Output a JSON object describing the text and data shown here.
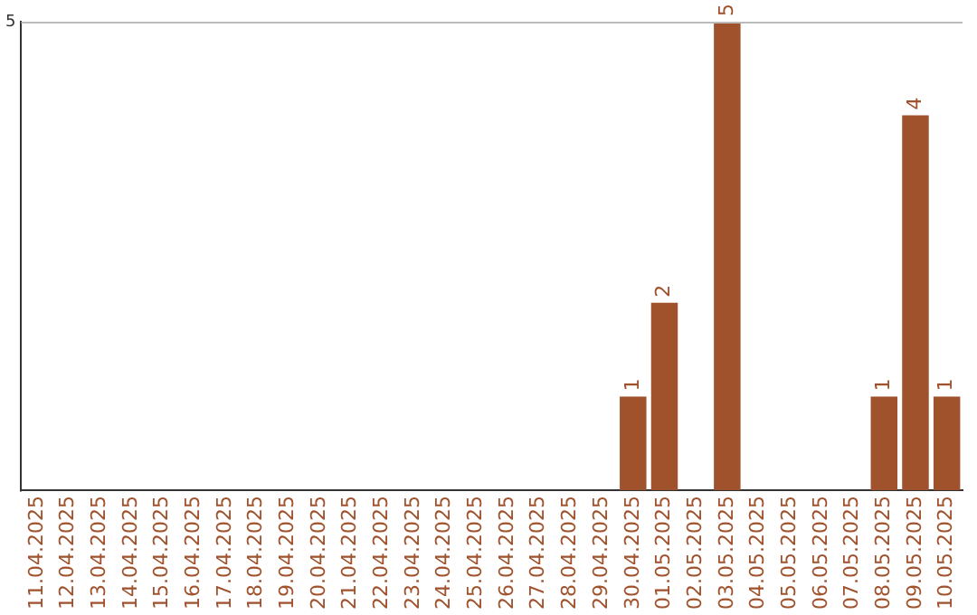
{
  "chart_data": {
    "type": "bar",
    "categories": [
      "11.04.2025",
      "12.04.2025",
      "13.04.2025",
      "14.04.2025",
      "15.04.2025",
      "16.04.2025",
      "17.04.2025",
      "18.04.2025",
      "19.04.2025",
      "20.04.2025",
      "21.04.2025",
      "22.04.2025",
      "23.04.2025",
      "24.04.2025",
      "25.04.2025",
      "26.04.2025",
      "27.04.2025",
      "28.04.2025",
      "29.04.2025",
      "30.04.2025",
      "01.05.2025",
      "02.05.2025",
      "03.05.2025",
      "04.05.2025",
      "05.05.2025",
      "06.05.2025",
      "07.05.2025",
      "08.05.2025",
      "09.05.2025",
      "10.05.2025"
    ],
    "values": [
      null,
      null,
      null,
      null,
      null,
      null,
      null,
      null,
      null,
      null,
      null,
      null,
      null,
      null,
      null,
      null,
      null,
      null,
      null,
      1,
      2,
      null,
      5,
      null,
      null,
      null,
      null,
      1,
      4,
      1
    ],
    "color": "#a0522d",
    "ylim": [
      0,
      5
    ],
    "yticks": [
      5
    ],
    "data_labels": true,
    "legend": false
  }
}
